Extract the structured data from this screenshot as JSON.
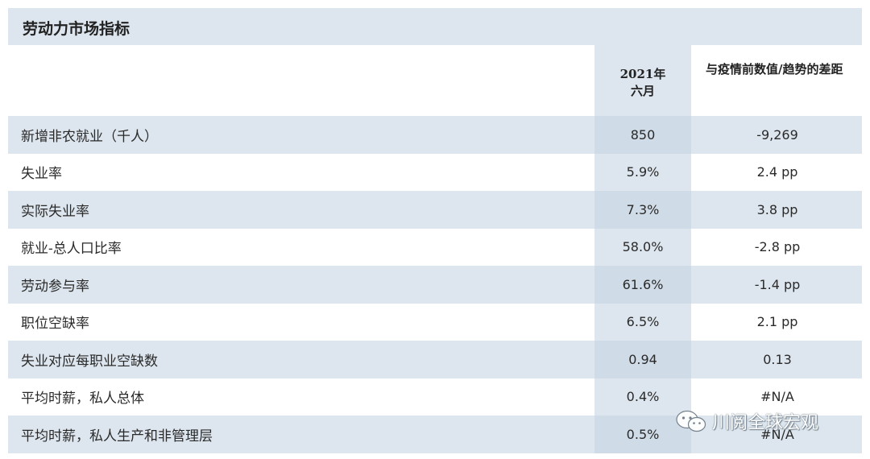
{
  "title": "劳动力市场指标",
  "header": {
    "col1": "2021年六月",
    "col2": "与疫情前数值/趋势的差距"
  },
  "rows": [
    {
      "label": "新增非农就业（千人）",
      "value": "850",
      "gap": "-9,269"
    },
    {
      "label": "失业率",
      "value": "5.9%",
      "gap": "2.4 pp"
    },
    {
      "label": "实际失业率",
      "value": "7.3%",
      "gap": "3.8 pp"
    },
    {
      "label": "就业-总人口比率",
      "value": "58.0%",
      "gap": "-2.8 pp"
    },
    {
      "label": "劳动参与率",
      "value": "61.6%",
      "gap": "-1.4 pp"
    },
    {
      "label": "职位空缺率",
      "value": "6.5%",
      "gap": "2.1 pp"
    },
    {
      "label": "失业对应每职业空缺数",
      "value": "0.94",
      "gap": "0.13"
    },
    {
      "label": "平均时薪，私人总体",
      "value": "0.4%",
      "gap": "#N/A"
    },
    {
      "label": "平均时薪，私人生产和非管理层",
      "value": "0.5%",
      "gap": "#N/A"
    }
  ],
  "watermark": {
    "icon": "wechat-icon",
    "text": "川阅全球宏观"
  }
}
